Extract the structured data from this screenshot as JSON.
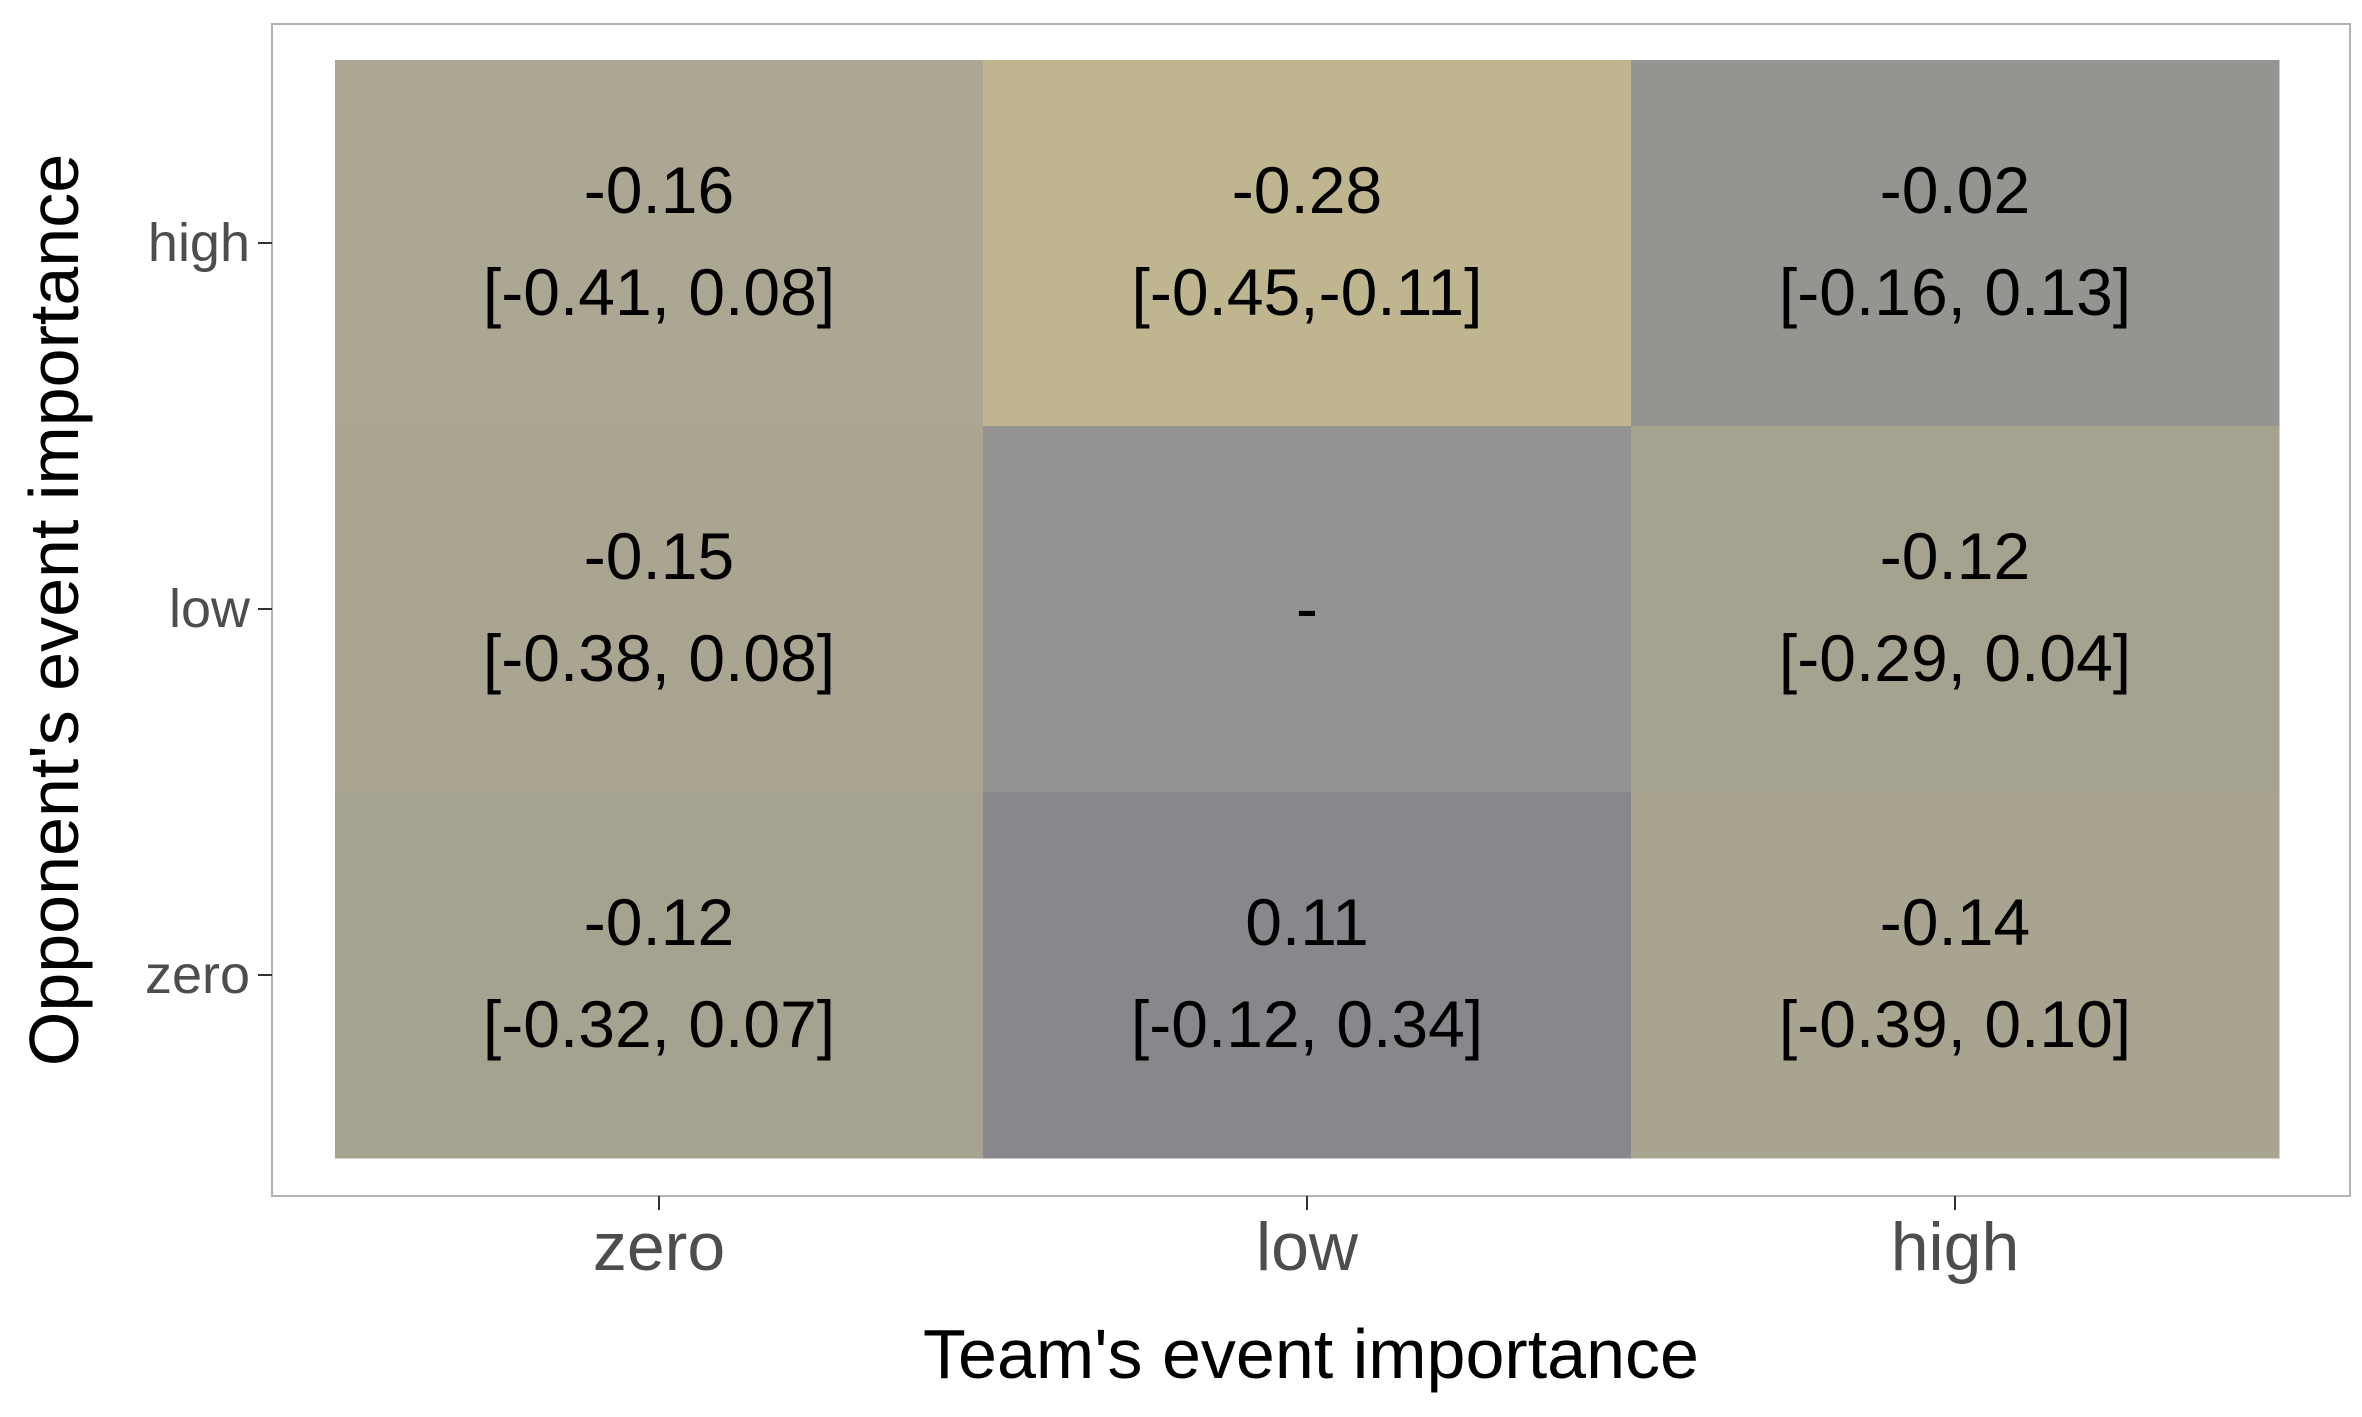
{
  "chart_data": {
    "type": "heatmap",
    "xlabel": "Team's event importance",
    "ylabel": "Opponent's event importance",
    "x_categories": [
      "zero",
      "low",
      "high"
    ],
    "y_categories": [
      "zero",
      "low",
      "high"
    ],
    "grid": false,
    "legend": "none",
    "cells": [
      {
        "x": "zero",
        "y": "high",
        "value": -0.16,
        "label": "-0.16",
        "ci_label": "[-0.41, 0.08]",
        "color": "#ACA792"
      },
      {
        "x": "low",
        "y": "high",
        "value": -0.28,
        "label": "-0.28",
        "ci_label": "[-0.45,-0.11]",
        "color": "#BFB690"
      },
      {
        "x": "high",
        "y": "high",
        "value": -0.02,
        "label": "-0.02",
        "ci_label": "[-0.16, 0.13]",
        "color": "#969490"
      },
      {
        "x": "zero",
        "y": "low",
        "value": -0.15,
        "label": "-0.15",
        "ci_label": "[-0.38, 0.08]",
        "color": "#AAA591"
      },
      {
        "x": "low",
        "y": "low",
        "value": null,
        "label": "-",
        "ci_label": "",
        "color": "#959391"
      },
      {
        "x": "high",
        "y": "low",
        "value": -0.12,
        "label": "-0.12",
        "ci_label": "[-0.29, 0.04]",
        "color": "#A6A290"
      },
      {
        "x": "zero",
        "y": "zero",
        "value": -0.12,
        "label": "-0.12",
        "ci_label": "[-0.32, 0.07]",
        "color": "#A6A290"
      },
      {
        "x": "low",
        "y": "zero",
        "value": 0.11,
        "label": "0.11",
        "ci_label": "[-0.12, 0.34]",
        "color": "#88878B"
      },
      {
        "x": "high",
        "y": "zero",
        "value": -0.14,
        "label": "-0.14",
        "ci_label": "[-0.39, 0.10]",
        "color": "#A9A48F"
      }
    ]
  }
}
